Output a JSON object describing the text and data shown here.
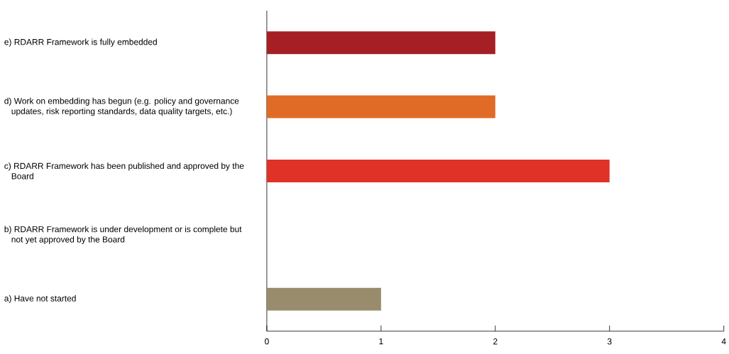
{
  "chart_data": {
    "type": "bar",
    "orientation": "horizontal",
    "categories": [
      "e) RDARR Framework is fully embedded",
      "d) Work on embedding has begun (e.g. policy and governance updates, risk reporting standards, data quality targets, etc.)",
      "c) RDARR Framework has been published and approved by the Board",
      "b) RDARR Framework is under development or is complete but not yet approved by the Board",
      "a) Have not started"
    ],
    "values": [
      2,
      2,
      3,
      0,
      1
    ],
    "colors": [
      "#a51f24",
      "#e06b26",
      "#e03226",
      "#e03226",
      "#988c6c"
    ],
    "xlim": [
      0,
      4
    ],
    "xticks": [
      0,
      1,
      2,
      3,
      4
    ]
  }
}
